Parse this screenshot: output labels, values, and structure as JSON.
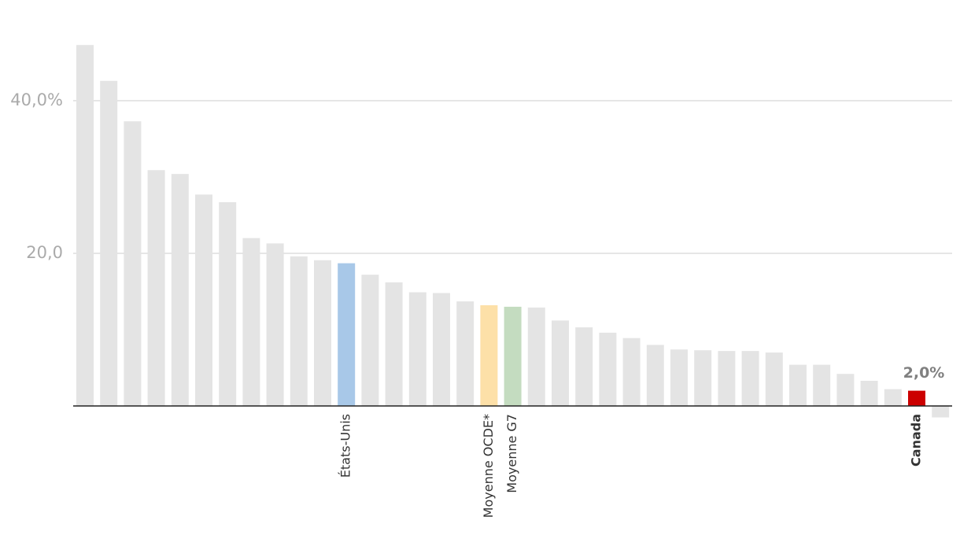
{
  "chart_data": {
    "type": "bar",
    "categories": [
      null,
      null,
      null,
      null,
      null,
      null,
      null,
      null,
      null,
      null,
      null,
      "États-Unis",
      null,
      null,
      null,
      null,
      null,
      "Moyenne OCDE*",
      "Moyenne G7",
      null,
      null,
      null,
      null,
      null,
      null,
      null,
      null,
      null,
      null,
      null,
      null,
      null,
      null,
      null,
      null,
      "Canada",
      null
    ],
    "values": [
      47.3,
      42.6,
      37.3,
      30.9,
      30.4,
      27.7,
      26.7,
      22.0,
      21.3,
      19.6,
      19.1,
      18.7,
      17.2,
      16.2,
      14.9,
      14.8,
      13.7,
      13.2,
      13.0,
      12.9,
      11.2,
      10.3,
      9.6,
      8.9,
      8.0,
      7.4,
      7.3,
      7.2,
      7.2,
      7.0,
      5.4,
      5.4,
      4.2,
      3.3,
      2.2,
      2.0,
      -1.5
    ],
    "value_labels": [
      null,
      null,
      null,
      null,
      null,
      null,
      null,
      null,
      null,
      null,
      null,
      null,
      null,
      null,
      null,
      null,
      null,
      null,
      null,
      null,
      null,
      null,
      null,
      null,
      null,
      null,
      null,
      null,
      null,
      null,
      null,
      null,
      null,
      null,
      null,
      "2,0%",
      null
    ],
    "color": "#e4e4e4",
    "colors": [
      "#e4e4e4",
      "#e4e4e4",
      "#e4e4e4",
      "#e4e4e4",
      "#e4e4e4",
      "#e4e4e4",
      "#e4e4e4",
      "#e4e4e4",
      "#e4e4e4",
      "#e4e4e4",
      "#e4e4e4",
      "#a8c8e8",
      "#e4e4e4",
      "#e4e4e4",
      "#e4e4e4",
      "#e4e4e4",
      "#e4e4e4",
      "#fde0a8",
      "#c4dcc0",
      "#e4e4e4",
      "#e4e4e4",
      "#e4e4e4",
      "#e4e4e4",
      "#e4e4e4",
      "#e4e4e4",
      "#e4e4e4",
      "#e4e4e4",
      "#e4e4e4",
      "#e4e4e4",
      "#e4e4e4",
      "#e4e4e4",
      "#e4e4e4",
      "#e4e4e4",
      "#e4e4e4",
      "#e4e4e4",
      "#cc0000",
      "#e4e4e4"
    ],
    "ylim": [
      -4,
      50
    ],
    "yticks": [
      {
        "value": 20,
        "label": "20,0"
      },
      {
        "value": 40,
        "label": "40,0%"
      }
    ],
    "grid": true
  }
}
